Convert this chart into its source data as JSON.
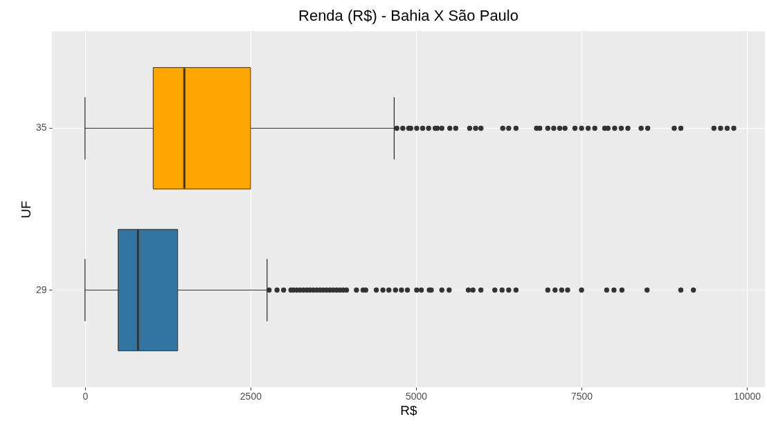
{
  "chart_data": {
    "type": "box",
    "title": "Renda (R$) - Bahia X São Paulo",
    "xlabel": "R$",
    "ylabel": "UF",
    "orientation": "horizontal",
    "categories": [
      "35",
      "29"
    ],
    "colors": [
      "#ffa500",
      "#3274a1"
    ],
    "boxes": [
      {
        "low": 0,
        "q1": 1030,
        "median": 1500,
        "q3": 2500,
        "high": 4670,
        "outliers": [
          4710,
          4800,
          4890,
          4920,
          5010,
          5100,
          5190,
          5290,
          5320,
          5390,
          5510,
          5600,
          5810,
          5900,
          5980,
          6310,
          6400,
          6510,
          6820,
          6870,
          6990,
          7080,
          7170,
          7250,
          7400,
          7500,
          7600,
          7700,
          7850,
          7900,
          8000,
          8100,
          8200,
          8400,
          8500,
          8900,
          9000,
          9500,
          9600,
          9700,
          9800
        ]
      },
      {
        "low": 0,
        "q1": 500,
        "median": 800,
        "q3": 1400,
        "high": 2750,
        "outliers": [
          2780,
          2900,
          3000,
          3110,
          3150,
          3200,
          3250,
          3300,
          3350,
          3400,
          3450,
          3500,
          3550,
          3600,
          3650,
          3700,
          3750,
          3800,
          3850,
          3900,
          3950,
          4100,
          4200,
          4240,
          4400,
          4500,
          4590,
          4690,
          4780,
          4870,
          5010,
          5080,
          5200,
          5230,
          5390,
          5500,
          5790,
          5860,
          5980,
          6190,
          6300,
          6400,
          6510,
          6990,
          7100,
          7200,
          7290,
          7500,
          7880,
          7990,
          8110,
          8490,
          9000,
          9190
        ]
      }
    ],
    "xlim": [
      -500,
      10270
    ],
    "xticks": [
      0,
      2500,
      5000,
      7500,
      10000
    ],
    "grid": true,
    "legend": false
  }
}
